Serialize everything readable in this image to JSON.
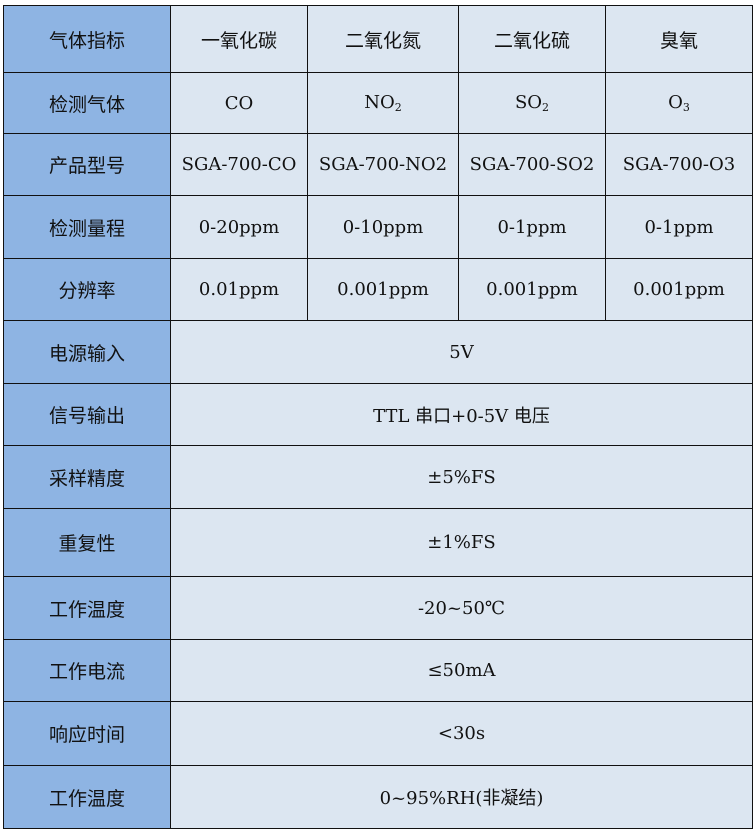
{
  "header": {
    "label": "气体指标",
    "gases": [
      "一氧化碳",
      "二氧化氮",
      "二氧化硫",
      "臭氧"
    ]
  },
  "per_gas_rows": [
    {
      "label": "检测气体",
      "values": [
        {
          "main": "CO",
          "sub": ""
        },
        {
          "main": "NO",
          "sub": "2"
        },
        {
          "main": "SO",
          "sub": "2"
        },
        {
          "main": "O",
          "sub": "3"
        }
      ]
    },
    {
      "label": "产品型号",
      "values": [
        {
          "main": "SGA-700-CO"
        },
        {
          "main": "SGA-700-NO2"
        },
        {
          "main": "SGA-700-SO2"
        },
        {
          "main": "SGA-700-O3"
        }
      ]
    },
    {
      "label": "检测量程",
      "values": [
        {
          "main": "0-20ppm"
        },
        {
          "main": "0-10ppm"
        },
        {
          "main": "0-1ppm"
        },
        {
          "main": "0-1ppm"
        }
      ]
    },
    {
      "label": "分辨率",
      "values": [
        {
          "main": "0.01ppm"
        },
        {
          "main": "0.001ppm"
        },
        {
          "main": "0.001ppm"
        },
        {
          "main": "0.001ppm"
        }
      ]
    }
  ],
  "shared_rows": [
    {
      "label": "电源输入",
      "value": "5V"
    },
    {
      "label": "信号输出",
      "value": "TTL 串口+0-5V 电压"
    },
    {
      "label": "采样精度",
      "value": "±5%FS"
    },
    {
      "label": "重复性",
      "value": "±1%FS"
    },
    {
      "label": "工作温度",
      "value": "-20~50℃"
    },
    {
      "label": "工作电流",
      "value": "≤50mA"
    },
    {
      "label": "响应时间",
      "value": "<30s"
    },
    {
      "label": "工作温度",
      "value": "0~95%RH(非凝结)"
    }
  ],
  "colors": {
    "label_bg": "#8eb4e3",
    "cell_bg": "#dce6f1",
    "border": "#111111"
  }
}
